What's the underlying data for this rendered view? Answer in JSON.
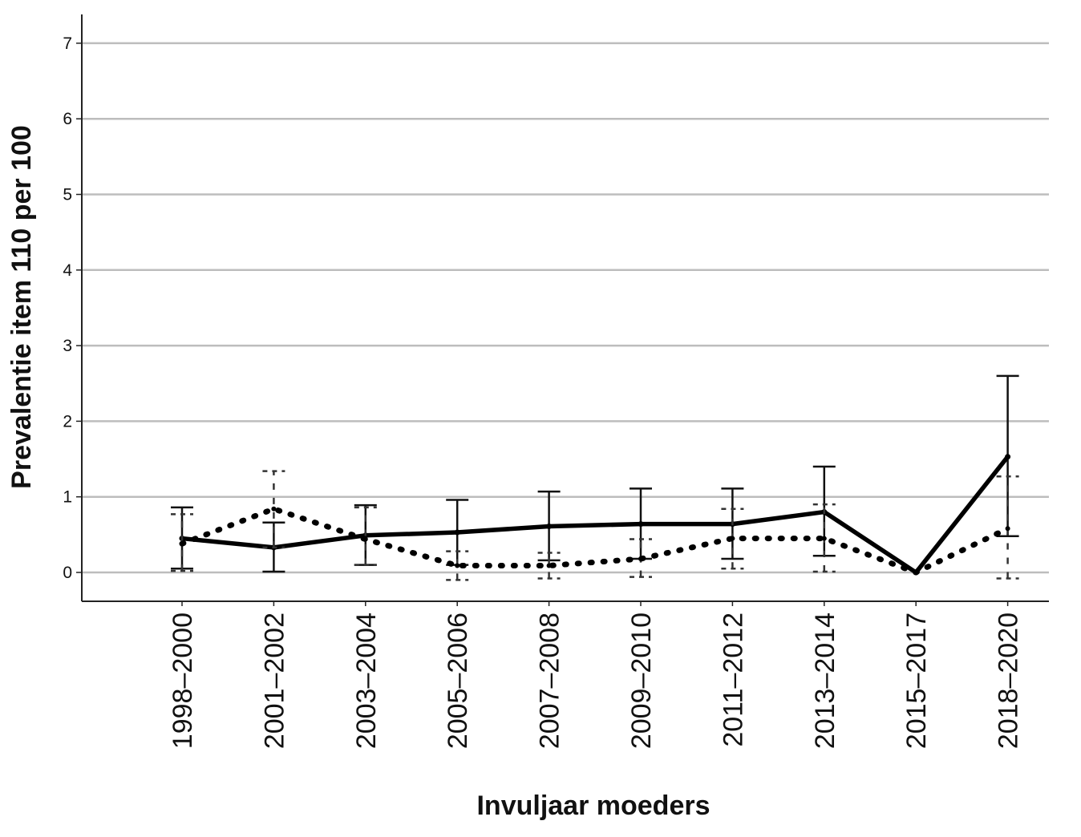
{
  "chart_data": {
    "type": "line",
    "title": "",
    "xlabel": "Invuljaar moeders",
    "ylabel": "Prevalentie item 110 per 100",
    "ylim": [
      -0.4,
      7.4
    ],
    "yticks": [
      "0",
      "1",
      "2",
      "3",
      "4",
      "5",
      "6",
      "7"
    ],
    "grid": "horizontal",
    "legend": "none",
    "categories": [
      "1998–2000",
      "2001–2002",
      "2003–2004",
      "2005–2006",
      "2007–2008",
      "2009–2010",
      "2011–2012",
      "2013–2014",
      "2015–2017",
      "2018–2020"
    ],
    "series": [
      {
        "style": "solid",
        "color": "#000000",
        "values": [
          0.45,
          0.33,
          0.49,
          0.53,
          0.61,
          0.64,
          0.64,
          0.8,
          0.0,
          1.53
        ],
        "error_low": [
          0.05,
          0.01,
          0.1,
          0.1,
          0.16,
          0.18,
          0.18,
          0.22,
          0.0,
          0.48
        ],
        "error_high": [
          0.86,
          0.66,
          0.89,
          0.96,
          1.07,
          1.11,
          1.11,
          1.4,
          0.0,
          2.6
        ]
      },
      {
        "style": "dotted",
        "color": "#000000",
        "values": [
          0.38,
          0.84,
          0.44,
          0.09,
          0.09,
          0.18,
          0.45,
          0.45,
          0.0,
          0.58
        ],
        "error_low": [
          0.02,
          0.33,
          0.1,
          -0.1,
          -0.08,
          -0.06,
          0.05,
          0.01,
          0.0,
          -0.08
        ],
        "error_high": [
          0.77,
          1.34,
          0.86,
          0.28,
          0.26,
          0.44,
          0.84,
          0.9,
          0.0,
          1.27
        ]
      }
    ]
  }
}
